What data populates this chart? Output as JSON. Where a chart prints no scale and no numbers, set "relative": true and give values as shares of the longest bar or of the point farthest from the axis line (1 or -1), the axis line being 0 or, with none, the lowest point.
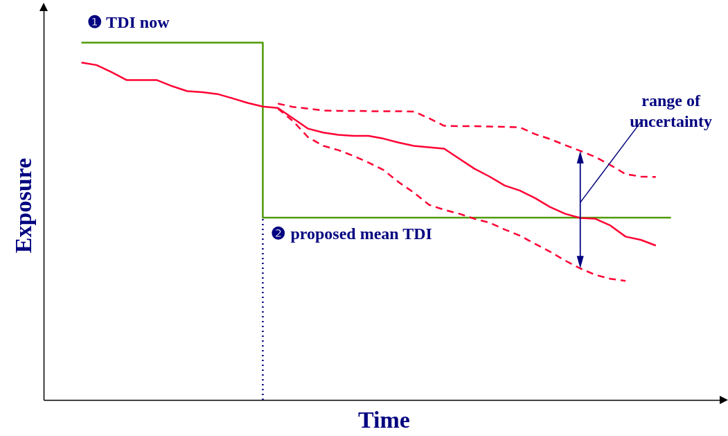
{
  "chart_data": {
    "type": "line",
    "xlabel": "Time",
    "ylabel": "Exposure",
    "relative": true,
    "categories": [
      null,
      null,
      null,
      null,
      null,
      null,
      null,
      null,
      null,
      null,
      null,
      null,
      null,
      null,
      null,
      null,
      null,
      null,
      null,
      null,
      null,
      null,
      null,
      null,
      null,
      null,
      null,
      null,
      null,
      null,
      null,
      null,
      null,
      null,
      null,
      null,
      null,
      null,
      null,
      null,
      null,
      null,
      null,
      null,
      null
    ],
    "series": [
      {
        "type": "step",
        "color": "#4e9a06",
        "values": [
          null,
          null,
          1.0,
          1.0,
          1.0,
          1.0,
          1.0,
          1.0,
          1.0,
          1.0,
          1.0,
          1.0,
          1.0,
          1.0,
          0.51,
          0.51,
          0.51,
          0.51,
          0.51,
          0.51,
          0.51,
          0.51,
          0.51,
          0.51,
          0.51,
          0.51,
          0.51,
          0.51,
          0.51,
          0.51,
          0.51,
          0.51,
          0.51,
          0.51,
          0.51,
          0.51,
          0.51,
          0.51,
          0.51,
          0.51,
          0.51,
          0.51,
          null,
          null,
          null
        ]
      },
      {
        "color": "#ff0033",
        "values": [
          null,
          null,
          0.944,
          0.937,
          0.917,
          0.895,
          0.895,
          0.895,
          0.878,
          0.864,
          0.861,
          0.856,
          0.844,
          0.831,
          0.821,
          0.817,
          0.788,
          0.759,
          0.748,
          0.742,
          0.739,
          0.739,
          0.731,
          0.72,
          0.711,
          0.707,
          0.703,
          0.675,
          0.647,
          0.625,
          0.6,
          0.586,
          0.565,
          0.54,
          0.521,
          0.509,
          0.507,
          0.488,
          0.457,
          0.448,
          0.432,
          null,
          null,
          null,
          null
        ]
      },
      {
        "color": "#ff0033",
        "line_style": "dashed",
        "values": [
          null,
          null,
          null,
          null,
          null,
          null,
          null,
          null,
          null,
          null,
          null,
          null,
          null,
          null,
          null,
          0.829,
          0.82,
          0.815,
          0.81,
          0.809,
          0.809,
          0.808,
          0.808,
          0.808,
          0.807,
          0.788,
          0.767,
          0.766,
          0.766,
          0.765,
          0.764,
          0.763,
          0.744,
          0.73,
          0.713,
          0.697,
          0.68,
          0.657,
          0.632,
          0.625,
          0.624,
          null,
          null,
          null,
          null
        ]
      },
      {
        "color": "#ff0033",
        "line_style": "dashed",
        "values": [
          null,
          null,
          null,
          null,
          null,
          null,
          null,
          null,
          null,
          null,
          null,
          null,
          null,
          null,
          null,
          0.815,
          0.78,
          0.735,
          0.711,
          0.699,
          0.683,
          0.664,
          0.643,
          0.609,
          0.58,
          0.546,
          0.532,
          0.521,
          0.507,
          0.496,
          0.477,
          0.46,
          0.437,
          0.415,
          0.39,
          0.368,
          0.35,
          0.339,
          0.333,
          null,
          null,
          null,
          null,
          null,
          null
        ]
      }
    ],
    "ref_lines": [
      {
        "axis": "x",
        "color": "#000080",
        "line_style": "dotted"
      }
    ],
    "annotations": [
      "❶ TDI now",
      "❷ proposed mean TDI",
      "range of\nuncertainty"
    ]
  }
}
